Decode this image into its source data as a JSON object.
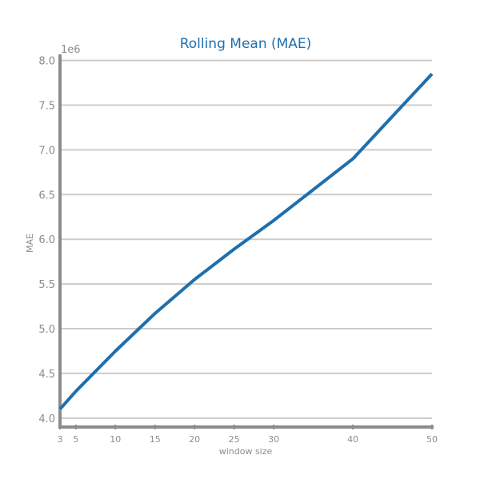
{
  "chart_data": {
    "type": "line",
    "title": "Rolling Mean (MAE)",
    "xlabel": "window size",
    "ylabel": "MAE",
    "y_offset_label": "1e6",
    "xlim": [
      3,
      50
    ],
    "ylim": [
      3.9,
      8.05
    ],
    "x_ticks": [
      3,
      5,
      10,
      15,
      20,
      25,
      30,
      40,
      50
    ],
    "y_ticks": [
      4.0,
      4.5,
      5.0,
      5.5,
      6.0,
      6.5,
      7.0,
      7.5,
      8.0
    ],
    "y_tick_labels": [
      "4.0",
      "4.5",
      "5.0",
      "5.5",
      "6.0",
      "6.5",
      "7.0",
      "7.5",
      "8.0"
    ],
    "grid": "horizontal",
    "x": [
      3,
      5,
      10,
      15,
      20,
      25,
      30,
      40,
      50
    ],
    "series": [
      {
        "values": [
          4.1,
          4.3,
          4.75,
          5.17,
          5.55,
          5.89,
          6.21,
          6.9,
          7.85
        ],
        "color": "#1f6fad"
      }
    ],
    "colors": {
      "title": "#1f6fad",
      "line": "#1f6fad",
      "axis": "#8c8c8c",
      "grid": "#cccccc",
      "tick_text": "#8c8c8c"
    }
  }
}
